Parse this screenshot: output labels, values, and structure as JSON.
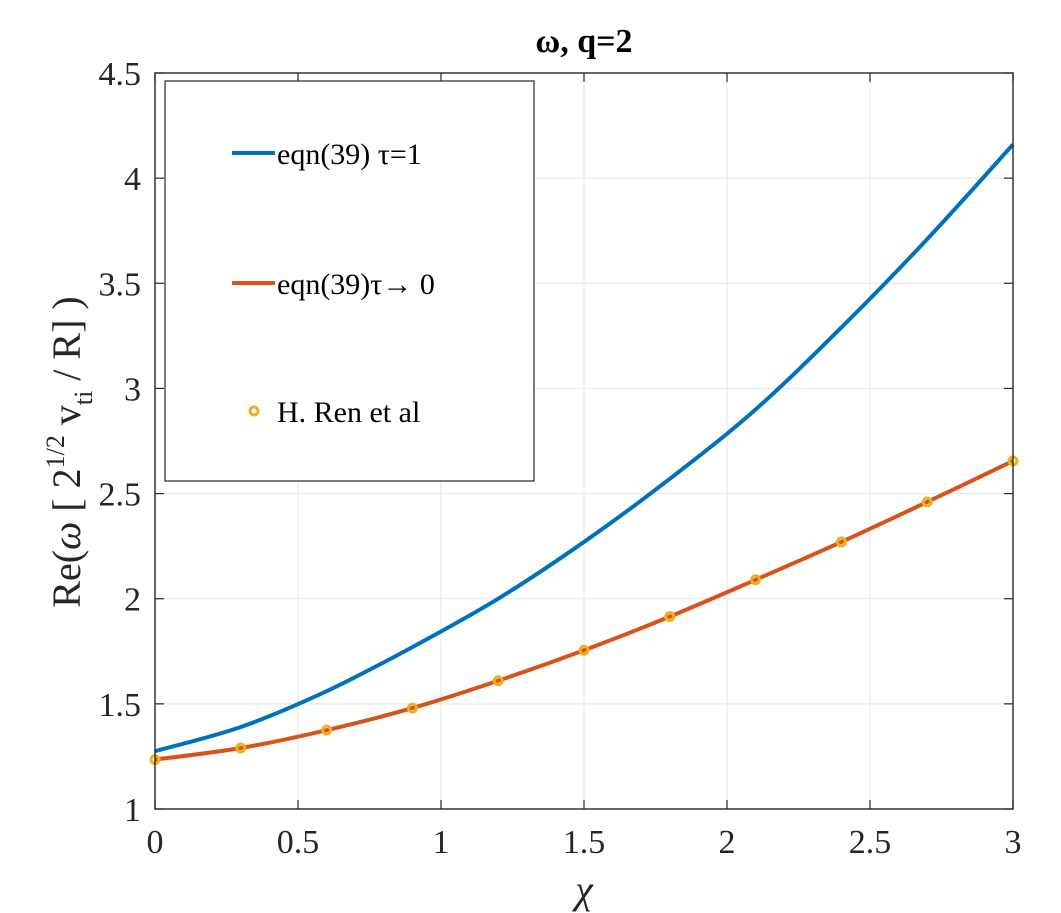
{
  "chart_data": {
    "type": "line",
    "title": "ω, q=2",
    "xlabel": "χ",
    "ylabel": "Re(ω [ 2^1/2 v_ti / R] )",
    "xlim": [
      0,
      3
    ],
    "ylim": [
      1,
      4.5
    ],
    "xticks": [
      "0",
      "0.5",
      "1",
      "1.5",
      "2",
      "2.5",
      "3"
    ],
    "yticks": [
      "1",
      "1.5",
      "2",
      "2.5",
      "3",
      "3.5",
      "4",
      "4.5"
    ],
    "grid": true,
    "legend_position": "top-left",
    "series": [
      {
        "name": "eqn(39) τ=1",
        "style": "line",
        "color": "#0072BD",
        "x": [
          0,
          0.3,
          0.6,
          0.9,
          1.2,
          1.5,
          1.8,
          2.1,
          2.4,
          2.7,
          3.0
        ],
        "y": [
          1.275,
          1.39,
          1.56,
          1.77,
          2.0,
          2.27,
          2.57,
          2.9,
          3.29,
          3.71,
          4.16
        ]
      },
      {
        "name": "eqn(39)τ→ 0",
        "style": "line",
        "color": "#D95319",
        "x": [
          0,
          0.3,
          0.6,
          0.9,
          1.2,
          1.5,
          1.8,
          2.1,
          2.4,
          2.7,
          3.0
        ],
        "y": [
          1.235,
          1.29,
          1.375,
          1.48,
          1.61,
          1.755,
          1.915,
          2.09,
          2.27,
          2.46,
          2.655
        ]
      },
      {
        "name": "H. Ren et al",
        "style": "markers",
        "color": "#EDB120",
        "x": [
          0,
          0.3,
          0.6,
          0.9,
          1.2,
          1.5,
          1.8,
          2.1,
          2.4,
          2.7,
          3.0
        ],
        "y": [
          1.235,
          1.29,
          1.375,
          1.48,
          1.61,
          1.755,
          1.915,
          2.09,
          2.27,
          2.46,
          2.655
        ]
      }
    ]
  }
}
